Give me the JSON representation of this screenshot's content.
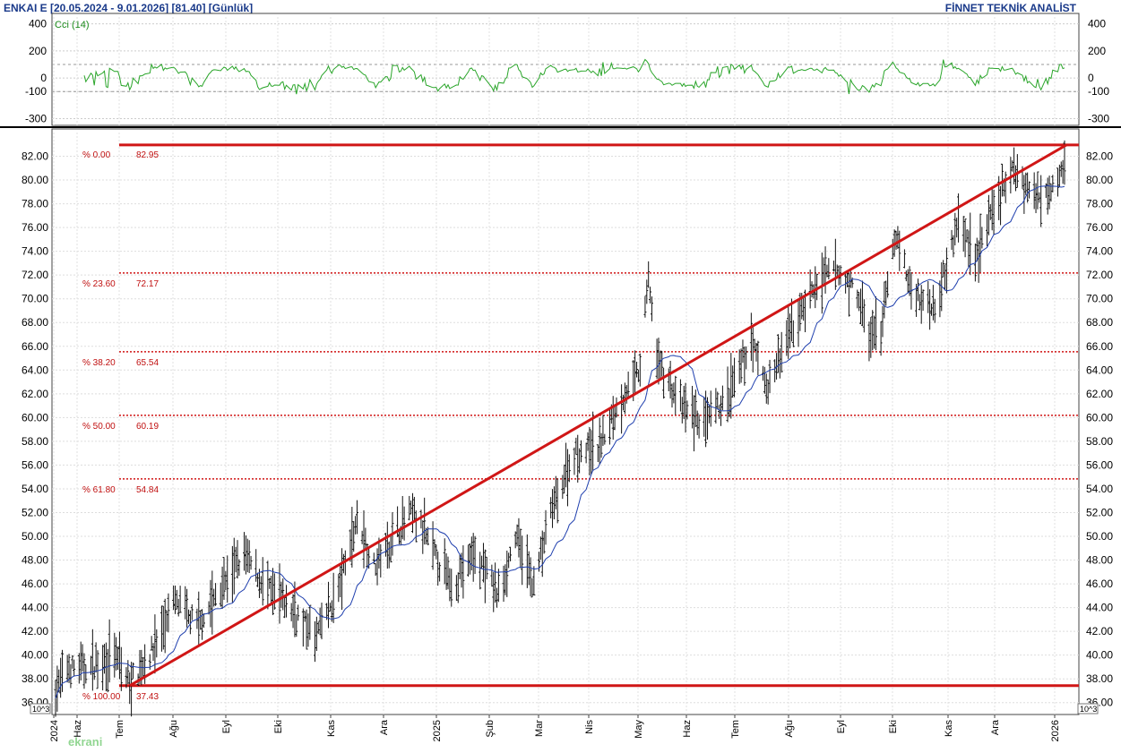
{
  "header": {
    "title": "ENKAI E  [20.05.2024 - 9.01.2026]  [81.40]  [Günlük]",
    "brand": "FİNNET TEKNİK ANALİST"
  },
  "watermark": "ekrani",
  "chart_data": [
    {
      "type": "line",
      "indicator": "Cci (14)",
      "ylim": [
        -350,
        450
      ],
      "yticks": [
        400,
        200,
        0,
        -100,
        -300
      ],
      "reference_lines": [
        100,
        -100
      ],
      "grid": true,
      "color": "#2aa52a"
    },
    {
      "type": "ohlc",
      "ylim": [
        35,
        84
      ],
      "yticks": [
        36,
        38,
        40,
        42,
        44,
        46,
        48,
        50,
        52,
        54,
        56,
        58,
        60,
        62,
        64,
        66,
        68,
        70,
        72,
        74,
        76,
        78,
        80,
        82
      ],
      "scale_note": "10^3",
      "x_labels": [
        "2024",
        "Haz",
        "Tem",
        "Ağu",
        "Eyl",
        "Eki",
        "Kas",
        "Ara",
        "2025",
        "Şub",
        "Mar",
        "Nis",
        "May",
        "Haz",
        "Tem",
        "Ağu",
        "Eyl",
        "Eki",
        "Kas",
        "Ara",
        "2026"
      ],
      "grid": true,
      "price_anchors": [
        [
          "2024-05-20",
          37.0
        ],
        [
          "2024-05-27",
          38.8
        ],
        [
          "2024-06-10",
          39.0
        ],
        [
          "2024-06-24",
          40.0
        ],
        [
          "2024-07-03",
          37.6
        ],
        [
          "2024-07-15",
          40.0
        ],
        [
          "2024-07-30",
          44.5
        ],
        [
          "2024-08-12",
          42.5
        ],
        [
          "2024-08-26",
          45.5
        ],
        [
          "2024-09-09",
          48.5
        ],
        [
          "2024-09-23",
          45.5
        ],
        [
          "2024-10-07",
          44.0
        ],
        [
          "2024-10-21",
          41.5
        ],
        [
          "2024-11-04",
          45.5
        ],
        [
          "2024-11-15",
          51.5
        ],
        [
          "2024-11-25",
          47.5
        ],
        [
          "2024-12-09",
          50.5
        ],
        [
          "2024-12-18",
          52.0
        ],
        [
          "2024-12-31",
          48.5
        ],
        [
          "2025-01-10",
          46.0
        ],
        [
          "2025-01-24",
          48.5
        ],
        [
          "2025-02-07",
          45.0
        ],
        [
          "2025-02-17",
          50.0
        ],
        [
          "2025-02-28",
          46.0
        ],
        [
          "2025-03-10",
          52.0
        ],
        [
          "2025-03-24",
          57.0
        ],
        [
          "2025-04-07",
          57.5
        ],
        [
          "2025-04-21",
          61.5
        ],
        [
          "2025-05-02",
          64.0
        ],
        [
          "2025-05-07",
          72.0
        ],
        [
          "2025-05-12",
          65.0
        ],
        [
          "2025-05-26",
          61.0
        ],
        [
          "2025-06-09",
          59.5
        ],
        [
          "2025-06-23",
          61.5
        ],
        [
          "2025-07-07",
          66.5
        ],
        [
          "2025-07-17",
          62.5
        ],
        [
          "2025-07-28",
          66.5
        ],
        [
          "2025-08-11",
          70.5
        ],
        [
          "2025-08-25",
          72.5
        ],
        [
          "2025-09-08",
          70.5
        ],
        [
          "2025-09-15",
          66.5
        ],
        [
          "2025-09-22",
          67.5
        ],
        [
          "2025-10-01",
          75.5
        ],
        [
          "2025-10-10",
          70.5
        ],
        [
          "2025-10-24",
          69.5
        ],
        [
          "2025-11-07",
          76.5
        ],
        [
          "2025-11-17",
          73.5
        ],
        [
          "2025-11-28",
          77.5
        ],
        [
          "2025-12-10",
          81.0
        ],
        [
          "2025-12-22",
          78.5
        ],
        [
          "2025-12-31",
          79.5
        ],
        [
          "2026-01-09",
          81.4
        ]
      ],
      "moving_average": {
        "color": "#1f3fae"
      },
      "trendline": {
        "from": [
          "2024-07-03",
          37.43
        ],
        "to": [
          "2026-01-09",
          82.95
        ],
        "color": "#d01616"
      },
      "fibonacci": [
        {
          "label": "% 0.00",
          "value": "82.95",
          "y": 82.95
        },
        {
          "label": "% 23.60",
          "value": "72.17",
          "y": 72.17
        },
        {
          "label": "% 38.20",
          "value": "65.54",
          "y": 65.54
        },
        {
          "label": "% 50.00",
          "value": "60.19",
          "y": 60.19
        },
        {
          "label": "% 61.80",
          "value": "54.84",
          "y": 54.84
        },
        {
          "label": "% 100.00",
          "value": "37.43",
          "y": 37.43
        }
      ]
    }
  ]
}
